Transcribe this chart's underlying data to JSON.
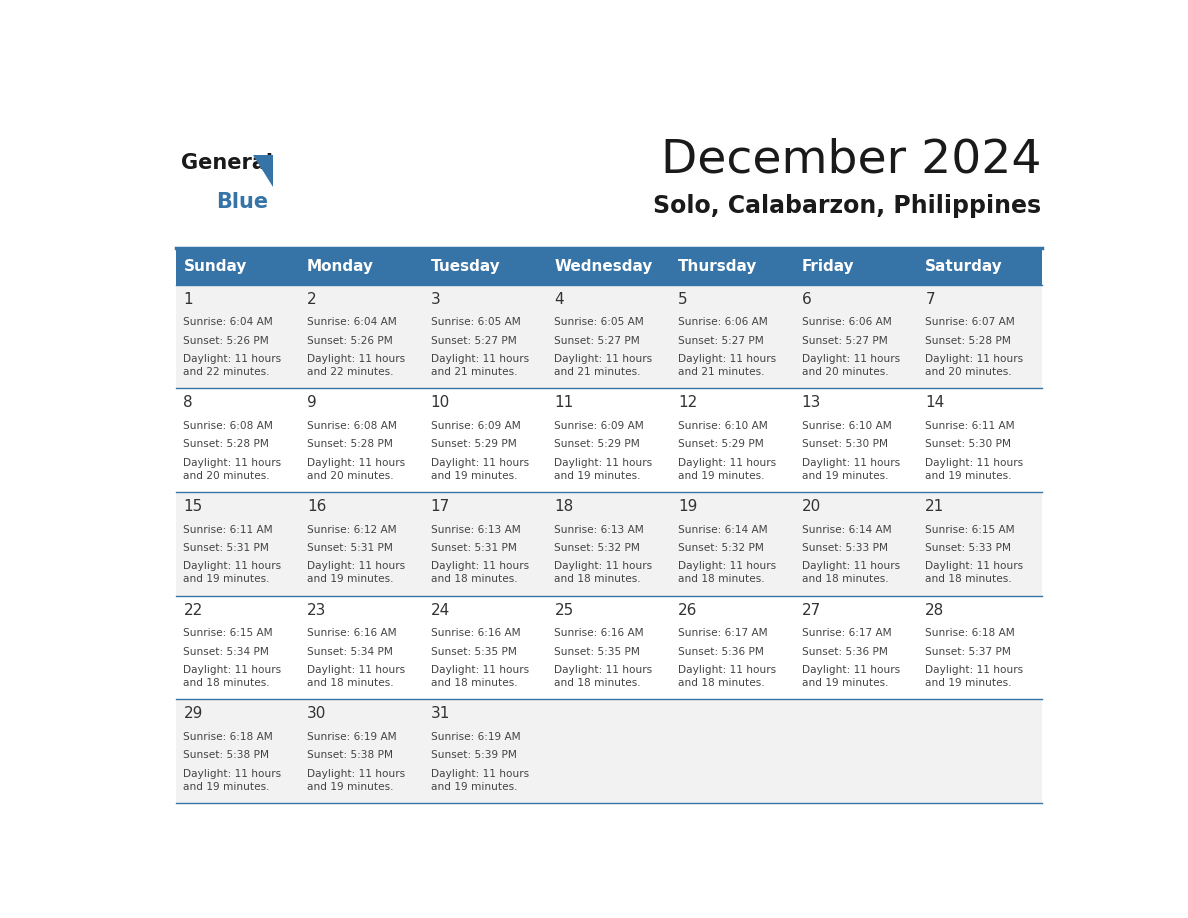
{
  "title": "December 2024",
  "subtitle": "Solo, Calabarzon, Philippines",
  "days_of_week": [
    "Sunday",
    "Monday",
    "Tuesday",
    "Wednesday",
    "Thursday",
    "Friday",
    "Saturday"
  ],
  "header_bg": "#3674a8",
  "header_text": "#ffffff",
  "cell_bg_odd": "#f2f2f2",
  "cell_bg_even": "#ffffff",
  "border_color": "#3674a8",
  "day_num_color": "#333333",
  "cell_text_color": "#444444",
  "weeks": [
    {
      "days": [
        {
          "day": 1,
          "sunrise": "6:04 AM",
          "sunset": "5:26 PM",
          "daylight": "11 hours\nand 22 minutes."
        },
        {
          "day": 2,
          "sunrise": "6:04 AM",
          "sunset": "5:26 PM",
          "daylight": "11 hours\nand 22 minutes."
        },
        {
          "day": 3,
          "sunrise": "6:05 AM",
          "sunset": "5:27 PM",
          "daylight": "11 hours\nand 21 minutes."
        },
        {
          "day": 4,
          "sunrise": "6:05 AM",
          "sunset": "5:27 PM",
          "daylight": "11 hours\nand 21 minutes."
        },
        {
          "day": 5,
          "sunrise": "6:06 AM",
          "sunset": "5:27 PM",
          "daylight": "11 hours\nand 21 minutes."
        },
        {
          "day": 6,
          "sunrise": "6:06 AM",
          "sunset": "5:27 PM",
          "daylight": "11 hours\nand 20 minutes."
        },
        {
          "day": 7,
          "sunrise": "6:07 AM",
          "sunset": "5:28 PM",
          "daylight": "11 hours\nand 20 minutes."
        }
      ]
    },
    {
      "days": [
        {
          "day": 8,
          "sunrise": "6:08 AM",
          "sunset": "5:28 PM",
          "daylight": "11 hours\nand 20 minutes."
        },
        {
          "day": 9,
          "sunrise": "6:08 AM",
          "sunset": "5:28 PM",
          "daylight": "11 hours\nand 20 minutes."
        },
        {
          "day": 10,
          "sunrise": "6:09 AM",
          "sunset": "5:29 PM",
          "daylight": "11 hours\nand 19 minutes."
        },
        {
          "day": 11,
          "sunrise": "6:09 AM",
          "sunset": "5:29 PM",
          "daylight": "11 hours\nand 19 minutes."
        },
        {
          "day": 12,
          "sunrise": "6:10 AM",
          "sunset": "5:29 PM",
          "daylight": "11 hours\nand 19 minutes."
        },
        {
          "day": 13,
          "sunrise": "6:10 AM",
          "sunset": "5:30 PM",
          "daylight": "11 hours\nand 19 minutes."
        },
        {
          "day": 14,
          "sunrise": "6:11 AM",
          "sunset": "5:30 PM",
          "daylight": "11 hours\nand 19 minutes."
        }
      ]
    },
    {
      "days": [
        {
          "day": 15,
          "sunrise": "6:11 AM",
          "sunset": "5:31 PM",
          "daylight": "11 hours\nand 19 minutes."
        },
        {
          "day": 16,
          "sunrise": "6:12 AM",
          "sunset": "5:31 PM",
          "daylight": "11 hours\nand 19 minutes."
        },
        {
          "day": 17,
          "sunrise": "6:13 AM",
          "sunset": "5:31 PM",
          "daylight": "11 hours\nand 18 minutes."
        },
        {
          "day": 18,
          "sunrise": "6:13 AM",
          "sunset": "5:32 PM",
          "daylight": "11 hours\nand 18 minutes."
        },
        {
          "day": 19,
          "sunrise": "6:14 AM",
          "sunset": "5:32 PM",
          "daylight": "11 hours\nand 18 minutes."
        },
        {
          "day": 20,
          "sunrise": "6:14 AM",
          "sunset": "5:33 PM",
          "daylight": "11 hours\nand 18 minutes."
        },
        {
          "day": 21,
          "sunrise": "6:15 AM",
          "sunset": "5:33 PM",
          "daylight": "11 hours\nand 18 minutes."
        }
      ]
    },
    {
      "days": [
        {
          "day": 22,
          "sunrise": "6:15 AM",
          "sunset": "5:34 PM",
          "daylight": "11 hours\nand 18 minutes."
        },
        {
          "day": 23,
          "sunrise": "6:16 AM",
          "sunset": "5:34 PM",
          "daylight": "11 hours\nand 18 minutes."
        },
        {
          "day": 24,
          "sunrise": "6:16 AM",
          "sunset": "5:35 PM",
          "daylight": "11 hours\nand 18 minutes."
        },
        {
          "day": 25,
          "sunrise": "6:16 AM",
          "sunset": "5:35 PM",
          "daylight": "11 hours\nand 18 minutes."
        },
        {
          "day": 26,
          "sunrise": "6:17 AM",
          "sunset": "5:36 PM",
          "daylight": "11 hours\nand 18 minutes."
        },
        {
          "day": 27,
          "sunrise": "6:17 AM",
          "sunset": "5:36 PM",
          "daylight": "11 hours\nand 19 minutes."
        },
        {
          "day": 28,
          "sunrise": "6:18 AM",
          "sunset": "5:37 PM",
          "daylight": "11 hours\nand 19 minutes."
        }
      ]
    },
    {
      "days": [
        {
          "day": 29,
          "sunrise": "6:18 AM",
          "sunset": "5:38 PM",
          "daylight": "11 hours\nand 19 minutes."
        },
        {
          "day": 30,
          "sunrise": "6:19 AM",
          "sunset": "5:38 PM",
          "daylight": "11 hours\nand 19 minutes."
        },
        {
          "day": 31,
          "sunrise": "6:19 AM",
          "sunset": "5:39 PM",
          "daylight": "11 hours\nand 19 minutes."
        },
        null,
        null,
        null,
        null
      ]
    }
  ]
}
